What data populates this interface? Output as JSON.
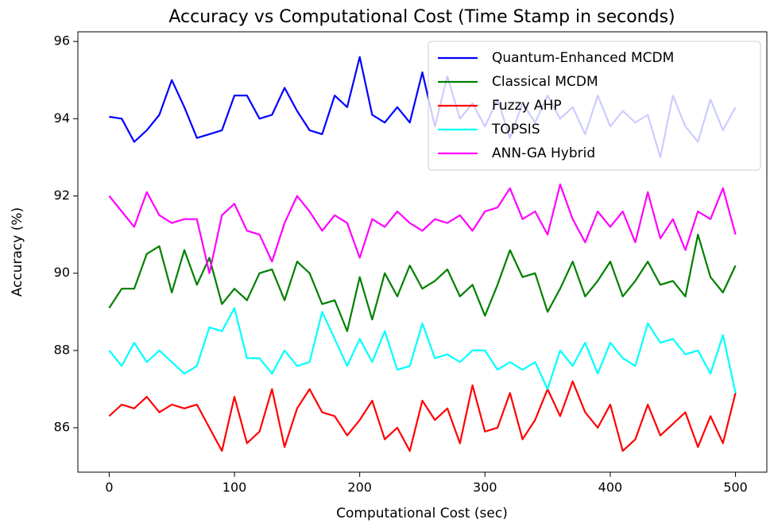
{
  "chart_data": {
    "type": "line",
    "title": "Accuracy vs Computational Cost (Time Stamp in seconds)",
    "x_label": "Computational Cost (sec)",
    "y_label": "Accuracy (%)",
    "x": [
      0,
      10,
      20,
      30,
      40,
      50,
      60,
      70,
      80,
      90,
      100,
      110,
      120,
      130,
      140,
      150,
      160,
      170,
      180,
      190,
      200,
      210,
      220,
      230,
      240,
      250,
      260,
      270,
      280,
      290,
      300,
      310,
      320,
      330,
      340,
      350,
      360,
      370,
      380,
      390,
      400,
      410,
      420,
      430,
      440,
      450,
      460,
      470,
      480,
      490,
      500
    ],
    "series": [
      {
        "name": "Quantum-Enhanced MCDM",
        "color": "#0000ff",
        "values": [
          94.05,
          94.0,
          93.4,
          93.7,
          94.1,
          95.0,
          94.3,
          93.5,
          93.6,
          93.7,
          94.6,
          94.6,
          94.0,
          94.1,
          94.8,
          94.2,
          93.7,
          93.6,
          94.6,
          94.3,
          95.6,
          94.1,
          93.9,
          94.3,
          93.9,
          95.2,
          93.8,
          95.1,
          94.0,
          94.4,
          93.8,
          94.5,
          93.5,
          94.4,
          93.9,
          94.6,
          94.0,
          94.3,
          93.6,
          94.6,
          93.8,
          94.2,
          93.9,
          94.1,
          93.0,
          94.6,
          93.8,
          93.4,
          94.5,
          93.7,
          94.3
        ]
      },
      {
        "name": "Classical MCDM",
        "color": "#008000",
        "values": [
          89.1,
          89.6,
          89.6,
          90.5,
          90.7,
          89.5,
          90.6,
          89.7,
          90.4,
          89.2,
          89.6,
          89.3,
          90.0,
          90.1,
          89.3,
          90.3,
          90.0,
          89.2,
          89.3,
          88.5,
          89.9,
          88.8,
          90.0,
          89.4,
          90.2,
          89.6,
          89.8,
          90.1,
          89.4,
          89.7,
          88.9,
          89.7,
          90.6,
          89.9,
          90.0,
          89.0,
          89.6,
          90.3,
          89.4,
          89.8,
          90.3,
          89.4,
          89.8,
          90.3,
          89.7,
          89.8,
          89.4,
          91.0,
          89.9,
          89.5,
          90.2
        ]
      },
      {
        "name": "Fuzzy AHP",
        "color": "#ff0000",
        "values": [
          86.3,
          86.6,
          86.5,
          86.8,
          86.4,
          86.6,
          86.5,
          86.6,
          86.0,
          85.4,
          86.8,
          85.6,
          85.9,
          87.0,
          85.5,
          86.5,
          87.0,
          86.4,
          86.3,
          85.8,
          86.2,
          86.7,
          85.7,
          86.0,
          85.4,
          86.7,
          86.2,
          86.5,
          85.6,
          87.1,
          85.9,
          86.0,
          86.9,
          85.7,
          86.2,
          87.0,
          86.3,
          87.2,
          86.4,
          86.0,
          86.6,
          85.4,
          85.7,
          86.6,
          85.8,
          86.1,
          86.4,
          85.5,
          86.3,
          85.6,
          86.9
        ]
      },
      {
        "name": "TOPSIS",
        "color": "#00ffff",
        "values": [
          88.0,
          87.6,
          88.2,
          87.7,
          88.0,
          87.7,
          87.4,
          87.6,
          88.6,
          88.5,
          89.1,
          87.8,
          87.8,
          87.4,
          88.0,
          87.6,
          87.7,
          89.0,
          88.3,
          87.6,
          88.3,
          87.7,
          88.5,
          87.5,
          87.6,
          88.7,
          87.8,
          87.9,
          87.7,
          88.0,
          88.0,
          87.5,
          87.7,
          87.5,
          87.7,
          87.0,
          88.0,
          87.6,
          88.2,
          87.4,
          88.2,
          87.8,
          87.6,
          88.7,
          88.2,
          88.3,
          87.9,
          88.0,
          87.4,
          88.4,
          86.9
        ]
      },
      {
        "name": "ANN-GA Hybrid",
        "color": "#ff00ff",
        "values": [
          92.0,
          91.6,
          91.2,
          92.1,
          91.5,
          91.3,
          91.4,
          91.4,
          90.0,
          91.5,
          91.8,
          91.1,
          91.0,
          90.3,
          91.3,
          92.0,
          91.6,
          91.1,
          91.5,
          91.3,
          90.4,
          91.4,
          91.2,
          91.6,
          91.3,
          91.1,
          91.4,
          91.3,
          91.5,
          91.1,
          91.6,
          91.7,
          92.2,
          91.4,
          91.6,
          91.0,
          92.3,
          91.4,
          90.8,
          91.6,
          91.2,
          91.6,
          90.8,
          92.1,
          90.9,
          91.4,
          90.6,
          91.6,
          91.4,
          92.2,
          91.0
        ]
      }
    ],
    "xlim": [
      -25,
      525
    ],
    "ylim": [
      84.85,
      96.25
    ],
    "xticks": [
      0,
      100,
      200,
      300,
      400,
      500
    ],
    "yticks": [
      86,
      88,
      90,
      92,
      94,
      96
    ],
    "grid": false,
    "legend": "upper right"
  }
}
